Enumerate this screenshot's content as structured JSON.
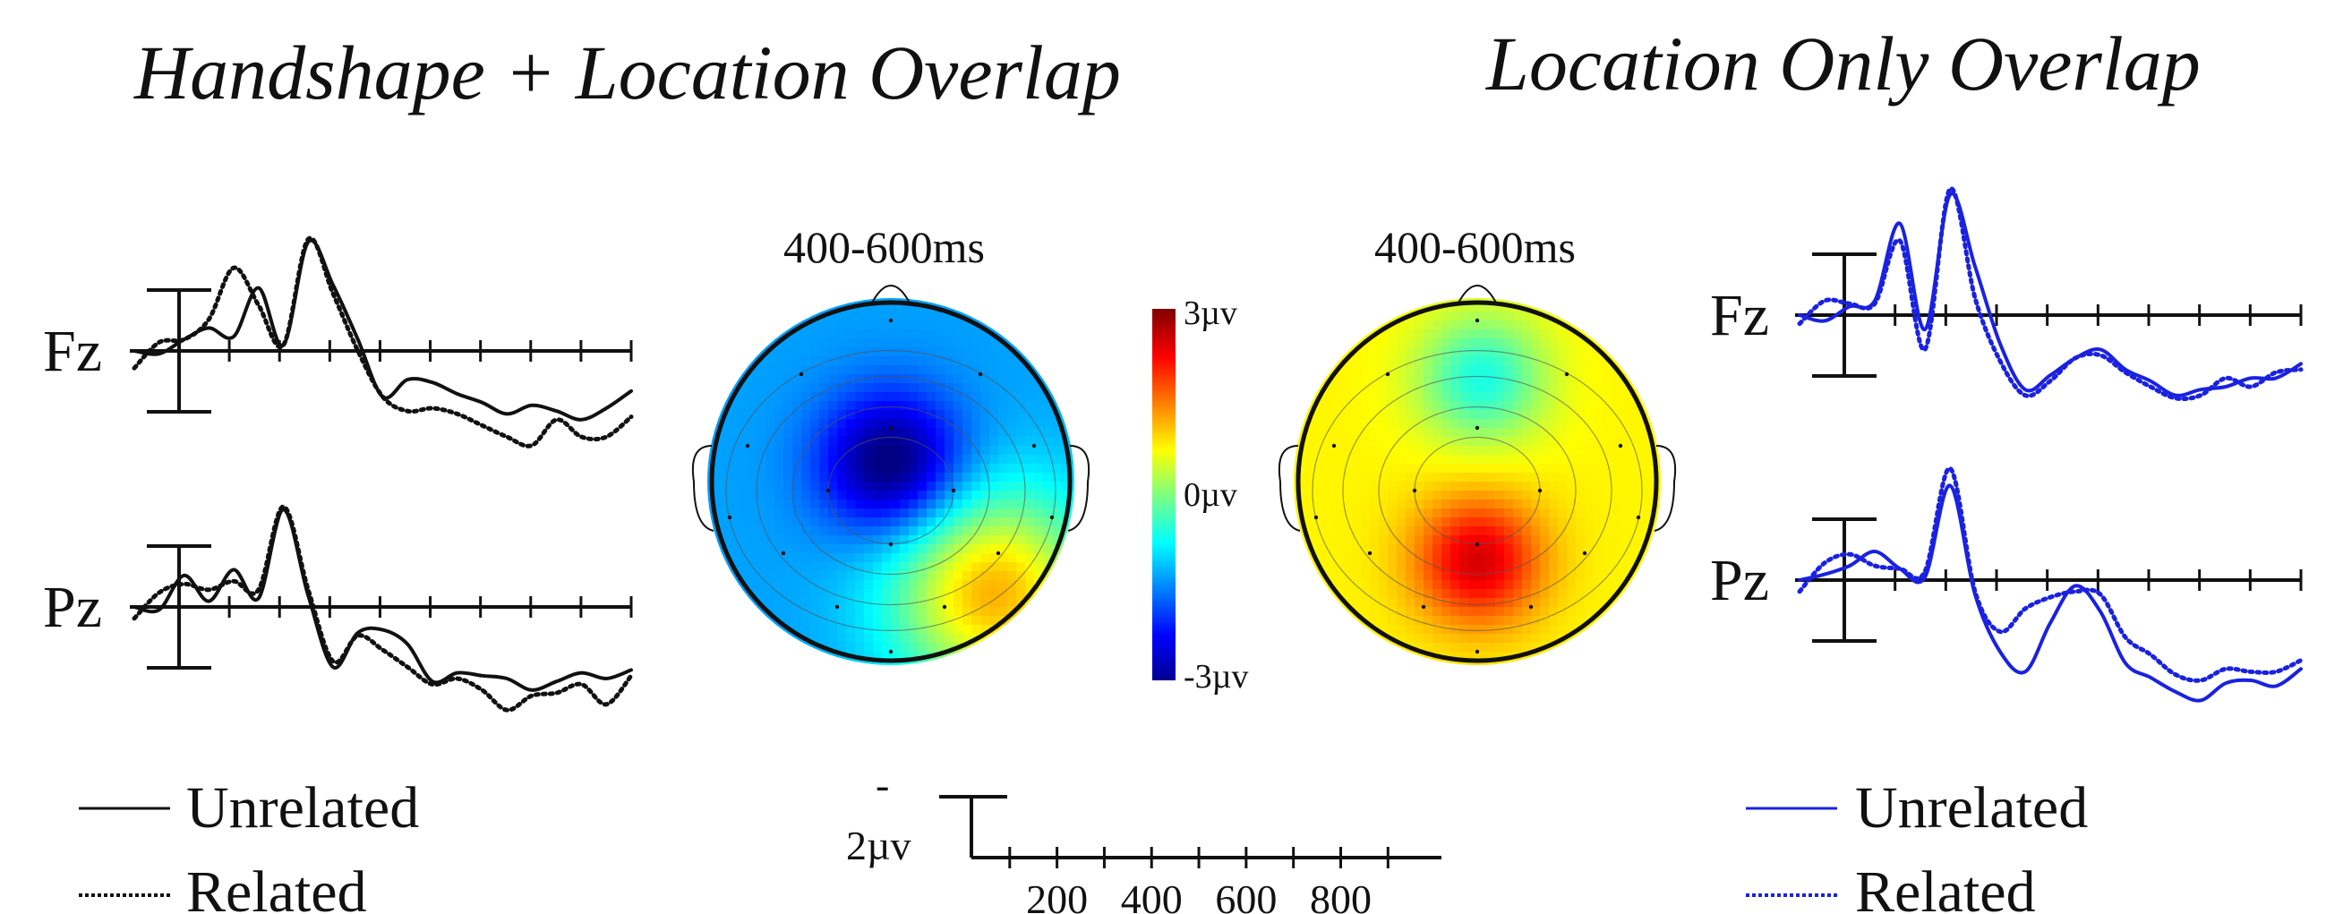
{
  "titles": {
    "left": "Handshape + Location Overlap",
    "right": "Location Only Overlap"
  },
  "colors": {
    "left_series": "#111111",
    "right_series": "#1a22e0"
  },
  "chart_data": [
    {
      "type": "line",
      "panel": "Handshape + Location Overlap",
      "electrodes": [
        {
          "label": "Fz",
          "x": [
            -100,
            -50,
            0,
            50,
            100,
            150,
            200,
            250,
            300,
            350,
            400,
            450,
            500,
            550,
            600,
            650,
            700,
            750,
            800,
            850,
            900
          ],
          "series": [
            {
              "name": "Unrelated",
              "values": [
                0,
                -0.1,
                0.4,
                0.8,
                0.5,
                2.2,
                0.2,
                3.8,
                2.3,
                0.4,
                -1.6,
                -1.0,
                -1.1,
                -1.5,
                -1.8,
                -2.2,
                -1.9,
                -2.1,
                -2.4,
                -2.0,
                -1.4
              ]
            },
            {
              "name": "Related",
              "values": [
                -0.6,
                0.3,
                0.4,
                1.1,
                2.9,
                1.6,
                0.2,
                3.9,
                2.0,
                0.0,
                -1.6,
                -2.1,
                -2.0,
                -2.2,
                -2.6,
                -3.0,
                -3.3,
                -2.4,
                -3.0,
                -3.0,
                -2.3
              ]
            }
          ]
        },
        {
          "label": "Pz",
          "x": [
            -100,
            -50,
            0,
            50,
            100,
            150,
            200,
            250,
            300,
            350,
            400,
            450,
            500,
            550,
            600,
            650,
            700,
            750,
            800,
            850,
            900
          ],
          "series": [
            {
              "name": "Unrelated",
              "values": [
                0,
                -0.1,
                1.1,
                0.2,
                1.3,
                0.3,
                3.4,
                0.4,
                -2.1,
                -0.9,
                -0.8,
                -1.3,
                -2.6,
                -2.3,
                -2.4,
                -2.5,
                -2.9,
                -2.6,
                -2.3,
                -2.5,
                -2.2
              ]
            },
            {
              "name": "Related",
              "values": [
                -0.4,
                0.5,
                0.8,
                0.6,
                0.9,
                0.6,
                3.5,
                0.6,
                -1.9,
                -1.0,
                -1.5,
                -2.1,
                -2.7,
                -2.5,
                -2.9,
                -3.6,
                -3.1,
                -3.0,
                -2.7,
                -3.4,
                -2.4
              ]
            }
          ]
        }
      ],
      "legend": [
        "Unrelated",
        "Related"
      ]
    },
    {
      "type": "line",
      "panel": "Location Only Overlap",
      "electrodes": [
        {
          "label": "Fz",
          "x": [
            -100,
            -50,
            0,
            50,
            100,
            150,
            200,
            250,
            300,
            350,
            400,
            450,
            500,
            550,
            600,
            650,
            700,
            750,
            800,
            850,
            900
          ],
          "series": [
            {
              "name": "Unrelated",
              "values": [
                0,
                -0.2,
                0.3,
                0.5,
                3.2,
                -0.5,
                4.2,
                1.7,
                -1.0,
                -2.6,
                -2.1,
                -1.5,
                -1.2,
                -1.9,
                -2.3,
                -2.8,
                -2.6,
                -2.5,
                -2.2,
                -2.2,
                -1.7
              ]
            },
            {
              "name": "Related",
              "values": [
                -0.3,
                0.5,
                0.4,
                0.4,
                2.6,
                -1.2,
                4.4,
                0.6,
                -1.6,
                -2.8,
                -2.3,
                -1.5,
                -1.4,
                -2.0,
                -2.5,
                -2.9,
                -2.8,
                -2.2,
                -2.5,
                -2.0,
                -1.9
              ]
            }
          ]
        },
        {
          "label": "Pz",
          "x": [
            -100,
            -50,
            0,
            50,
            100,
            150,
            200,
            250,
            300,
            350,
            400,
            450,
            500,
            550,
            600,
            650,
            700,
            750,
            800,
            850,
            900
          ],
          "series": [
            {
              "name": "Unrelated",
              "values": [
                0,
                0.2,
                0.5,
                1.0,
                0.4,
                0.1,
                3.3,
                -0.5,
                -2.5,
                -3.2,
                -1.5,
                -0.2,
                -1.1,
                -2.9,
                -3.4,
                -3.9,
                -4.2,
                -3.6,
                -3.5,
                -3.7,
                -3.1
              ]
            },
            {
              "name": "Related",
              "values": [
                -0.4,
                0.6,
                0.9,
                0.5,
                0.4,
                0.3,
                3.9,
                -0.4,
                -1.8,
                -1.0,
                -0.6,
                -0.4,
                -0.5,
                -2.0,
                -2.6,
                -3.3,
                -3.5,
                -3.1,
                -3.2,
                -3.2,
                -2.8
              ]
            }
          ]
        }
      ],
      "legend": [
        "Unrelated",
        "Related"
      ]
    },
    {
      "type": "heatmap",
      "panel": "Handshape + Location Overlap",
      "title": "400-600ms",
      "min_uv": -3,
      "max_uv": 3,
      "blobs": [
        {
          "xf": -0.02,
          "yf": -0.12,
          "uv": -3.2,
          "spread": 0.28
        },
        {
          "xf": 0.55,
          "yf": 0.6,
          "uv": 1.2,
          "spread": 0.4
        }
      ],
      "base_uv": -1.3
    },
    {
      "type": "heatmap",
      "panel": "Location Only Overlap",
      "title": "400-600ms",
      "min_uv": -3,
      "max_uv": 3,
      "blobs": [
        {
          "xf": -0.02,
          "yf": 0.42,
          "uv": 2.5,
          "spread": 0.25
        },
        {
          "xf": 0.0,
          "yf": -0.6,
          "uv": -0.6,
          "spread": 0.25
        }
      ],
      "base_uv": 0.8
    }
  ],
  "colorbar": {
    "max_label": "3µv",
    "mid_label": "0µv",
    "min_label": "-3µv"
  },
  "scale": {
    "amplitude_top": "-",
    "amplitude_label": "2µv",
    "ticks": [
      "200",
      "400",
      "600",
      "800"
    ]
  },
  "legend_labels": {
    "unrelated": "Unrelated",
    "related": "Related"
  }
}
